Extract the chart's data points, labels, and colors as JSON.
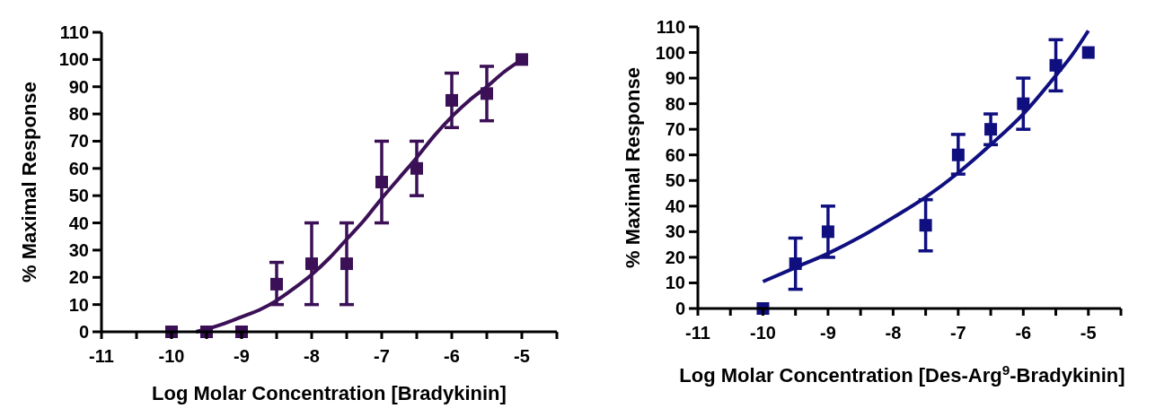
{
  "chart_data": [
    {
      "type": "scatter",
      "xlabel": "Log Molar Concentration [Bradykinin]",
      "ylabel": "% Maximal Response",
      "xlim": [
        -11,
        -4.5
      ],
      "xticks": [
        -11,
        {
          "value": -10.5,
          "label": null
        },
        -10,
        {
          "value": -9.5,
          "label": null
        },
        -9,
        {
          "value": -8.5,
          "label": null
        },
        -8,
        {
          "value": -7.5,
          "label": null
        },
        -7,
        {
          "value": -6.5,
          "label": null
        },
        -6,
        {
          "value": -5.5,
          "label": null
        },
        -5,
        {
          "value": -4.5,
          "label": null
        }
      ],
      "ylim": [
        0,
        110
      ],
      "yticks": [
        0,
        10,
        20,
        30,
        40,
        50,
        60,
        70,
        80,
        90,
        100,
        110
      ],
      "grid": false,
      "series": [
        {
          "marker": "square",
          "color": "#3b1056",
          "x": [
            -10,
            -9.5,
            -9,
            -8.5,
            -8,
            -7.5,
            -7,
            -6.5,
            -6,
            -5.5,
            -5
          ],
          "values": [
            0,
            0,
            0,
            17.5,
            25,
            25,
            55,
            60,
            85,
            87.5,
            100
          ],
          "errors": [
            null,
            null,
            null,
            [
              10,
              25.5
            ],
            [
              10,
              40
            ],
            [
              10,
              40
            ],
            [
              40,
              70
            ],
            [
              50,
              70
            ],
            [
              75,
              95
            ],
            [
              77.5,
              97.5
            ],
            null
          ]
        },
        {
          "type": "line",
          "color": "#3b1056",
          "x": [
            -9.65,
            -9.5,
            -9.25,
            -9,
            -8.75,
            -8.5,
            -8.25,
            -8,
            -7.75,
            -7.5,
            -7.25,
            -7,
            -6.75,
            -6.5,
            -6.25,
            -6,
            -5.75,
            -5.5,
            -5.25,
            -5
          ],
          "values": [
            0,
            1,
            3,
            5.5,
            8,
            11.5,
            16,
            21,
            27,
            34,
            41,
            49,
            56.5,
            64,
            72,
            79,
            85,
            90,
            95.5,
            100
          ]
        }
      ]
    },
    {
      "type": "scatter",
      "xlabel": "Log Molar Concentration [Des-Arg$^{9}$-Bradykinin]",
      "ylabel": "% Maximal Response",
      "xlim": [
        -11,
        -4.5
      ],
      "xticks": [
        -11,
        {
          "value": -10.5,
          "label": null
        },
        -10,
        {
          "value": -9.5,
          "label": null
        },
        -9,
        {
          "value": -8.5,
          "label": null
        },
        -8,
        {
          "value": -7.5,
          "label": null
        },
        -7,
        {
          "value": -6.5,
          "label": null
        },
        -6,
        {
          "value": -5.5,
          "label": null
        },
        -5,
        {
          "value": -4.5,
          "label": null
        }
      ],
      "ylim": [
        0,
        110
      ],
      "yticks": [
        0,
        10,
        20,
        30,
        40,
        50,
        60,
        70,
        80,
        90,
        100,
        110
      ],
      "grid": false,
      "series": [
        {
          "marker": "square",
          "color": "#0f0f80",
          "x": [
            -10,
            -9.5,
            -9,
            -7.5,
            -7,
            -6.5,
            -6,
            -5.5,
            -5
          ],
          "values": [
            0,
            17.5,
            30,
            32.5,
            60,
            70,
            80,
            95,
            100
          ],
          "errors": [
            null,
            [
              7.5,
              27.5
            ],
            [
              20,
              40
            ],
            [
              22.5,
              42.5
            ],
            [
              52.5,
              68
            ],
            [
              64,
              76
            ],
            [
              70,
              90
            ],
            [
              85,
              105
            ],
            null
          ]
        },
        {
          "type": "line",
          "color": "#0f0f80",
          "x": [
            -10,
            -9.5,
            -9,
            -8.5,
            -8,
            -7.5,
            -7,
            -6.5,
            -6,
            -5.5,
            -5.25,
            -5
          ],
          "values": [
            10.5,
            16,
            21.5,
            28,
            35.5,
            43.5,
            53,
            64,
            76,
            91,
            99,
            108.5
          ]
        }
      ]
    }
  ]
}
